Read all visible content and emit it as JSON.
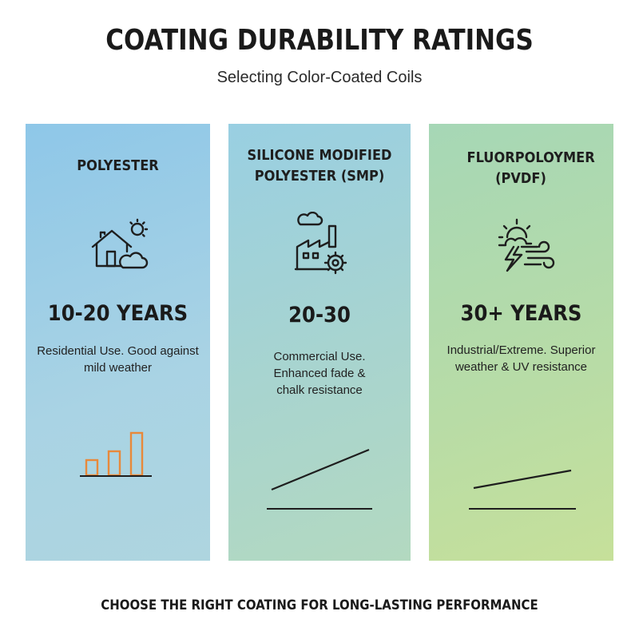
{
  "header": {
    "title": "COATING DURABILITY RATINGS",
    "subtitle": "Selecting Color-Coated Coils"
  },
  "panels": [
    {
      "title": "POLYESTER",
      "years": "10-20 YEARS",
      "description": "Residential Use. Good against mild weather",
      "icon": "house-sun-cloud-icon",
      "graph": "bar-chart-icon"
    },
    {
      "title": "SILICONE MODIFIED POLYESTER (SMP)",
      "years": "20-30",
      "description": "Commercial Use. Enhanced fade & chalk resistance",
      "icon": "factory-gear-icon",
      "graph": "rising-line-icon"
    },
    {
      "title": "FLUORPOLOYMER (PVDF)",
      "years": "30+ YEARS",
      "description": "Industrial/Extreme. Superior weather & UV resistance",
      "icon": "storm-sun-wind-icon",
      "graph": "gentle-line-icon"
    }
  ],
  "footer": "CHOOSE THE RIGHT COATING FOR LONG-LASTING PERFORMANCE",
  "colors": {
    "panel1": "#a9d3e4",
    "panel2": "#a8d4cf",
    "panel3": "#bcdca3",
    "bar_accent": "#e8893a"
  }
}
